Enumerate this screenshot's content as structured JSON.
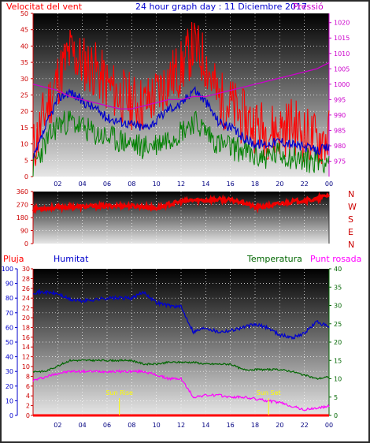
{
  "header": {
    "wind_label": "Velocitat del vent",
    "graph_title": "24 hour graph day : 11 Diciembre 2017",
    "pressure_label": "Pressió"
  },
  "colors": {
    "wind_max": "#ff0000",
    "wind_avg": "#0000cc",
    "wind_min": "#008000",
    "pressure": "#cc00cc",
    "direction": "#ee0000",
    "rain": "#ff0000",
    "humidity": "#0000cc",
    "temperature": "#006600",
    "dewpoint": "#ff00ff",
    "sun_marker": "#ffff00"
  },
  "compass": [
    "N",
    "W",
    "S",
    "E",
    "N"
  ],
  "lower_header": {
    "rain_label": "Pluja",
    "humidity_label": "Humitat",
    "temperature_label": "Temperatura",
    "dewpoint_label": "Punt rosada"
  },
  "sun": {
    "rise_label": "Sun Rise",
    "rise_hour": 7.0,
    "set_label": "Sun Set",
    "set_hour": 19.1
  },
  "chart_data": [
    {
      "type": "line",
      "panel": "wind",
      "x_ticks": [
        "02",
        "04",
        "06",
        "08",
        "10",
        "12",
        "14",
        "16",
        "18",
        "20",
        "22",
        "00"
      ],
      "x_hours": [
        0,
        1,
        2,
        3,
        4,
        5,
        6,
        7,
        8,
        9,
        10,
        11,
        12,
        13,
        14,
        15,
        16,
        17,
        18,
        19,
        20,
        21,
        22,
        23,
        24
      ],
      "ylim": [
        0,
        50
      ],
      "y_ticks": [
        0,
        5,
        10,
        15,
        20,
        25,
        30,
        35,
        40,
        45,
        50
      ],
      "y2lim": [
        970,
        1023
      ],
      "y2_ticks": [
        975,
        980,
        985,
        990,
        995,
        1000,
        1005,
        1010,
        1015,
        1020
      ],
      "series": [
        {
          "name": "Velocitat del vent",
          "axis": "left",
          "values": [
            8,
            20,
            30,
            38,
            35,
            33,
            28,
            25,
            23,
            22,
            25,
            30,
            33,
            40,
            35,
            24,
            22,
            18,
            16,
            14,
            14,
            16,
            13,
            11,
            12
          ]
        },
        {
          "axis": "left",
          "values": [
            5,
            15,
            24,
            26,
            23,
            21,
            18,
            17,
            16,
            15,
            17,
            21,
            22,
            27,
            23,
            17,
            15,
            12,
            10,
            10,
            11,
            10,
            9,
            8,
            9
          ]
        },
        {
          "axis": "left",
          "values": [
            3,
            10,
            16,
            17,
            15,
            13,
            12,
            11,
            10,
            9,
            10,
            12,
            14,
            17,
            14,
            10,
            9,
            8,
            6,
            6,
            7,
            6,
            5,
            5,
            5
          ]
        },
        {
          "name": "Pressió",
          "axis": "right",
          "values": [
            1000,
            999,
            998,
            996,
            995,
            994,
            993,
            992,
            992,
            993,
            994,
            995,
            995,
            996,
            996,
            997,
            998,
            999,
            1000,
            1001,
            1002,
            1003,
            1004,
            1005,
            1007
          ]
        }
      ]
    },
    {
      "type": "line",
      "panel": "wind_direction",
      "x_hours": [
        0,
        1,
        2,
        3,
        4,
        5,
        6,
        7,
        8,
        9,
        10,
        11,
        12,
        13,
        14,
        15,
        16,
        17,
        18,
        19,
        20,
        21,
        22,
        23,
        24
      ],
      "ylim": [
        0,
        360
      ],
      "y_ticks": [
        0,
        90,
        180,
        270,
        360
      ],
      "series": [
        {
          "values": [
            240,
            245,
            250,
            255,
            255,
            258,
            260,
            262,
            260,
            255,
            245,
            270,
            290,
            300,
            300,
            305,
            300,
            290,
            250,
            260,
            275,
            290,
            300,
            305,
            340
          ]
        }
      ]
    },
    {
      "type": "line",
      "panel": "humidity_temperature",
      "x_ticks": [
        "02",
        "04",
        "06",
        "08",
        "10",
        "12",
        "14",
        "16",
        "18",
        "20",
        "22",
        "00"
      ],
      "x_hours": [
        0,
        1,
        2,
        3,
        4,
        5,
        6,
        7,
        8,
        9,
        10,
        11,
        12,
        13,
        14,
        15,
        16,
        17,
        18,
        19,
        20,
        21,
        22,
        23,
        24
      ],
      "ylim": [
        0,
        100
      ],
      "y_ticks": [
        0,
        10,
        20,
        30,
        40,
        50,
        60,
        70,
        80,
        90,
        100
      ],
      "rain_ylim": [
        0,
        30
      ],
      "rain_ticks": [
        0,
        2,
        4,
        6,
        8,
        10,
        12,
        14,
        16,
        18,
        20,
        22,
        24,
        26,
        28,
        30
      ],
      "temp_ylim": [
        0,
        40
      ],
      "temp_ticks": [
        0,
        5,
        10,
        15,
        20,
        25,
        30,
        35,
        40
      ],
      "series": [
        {
          "name": "Pluja",
          "axis": "rain",
          "values": [
            0,
            0,
            0,
            0,
            0,
            0,
            0,
            0,
            0,
            0,
            0,
            0,
            0,
            0,
            0,
            0,
            0,
            0,
            0,
            0,
            0,
            0,
            0,
            0,
            0
          ]
        },
        {
          "name": "Humitat",
          "axis": "left",
          "values": [
            84,
            84,
            83,
            79,
            78,
            79,
            80,
            80,
            80,
            84,
            77,
            75,
            74,
            57,
            60,
            57,
            58,
            60,
            62,
            60,
            55,
            53,
            56,
            64,
            60
          ]
        },
        {
          "name": "Temperatura",
          "axis": "temp",
          "values": [
            12,
            12,
            13.5,
            15,
            15,
            15,
            15,
            15,
            15,
            14,
            14,
            14.5,
            14.5,
            14.5,
            14,
            14,
            14,
            12.5,
            12.5,
            12.5,
            12.5,
            12,
            11,
            10,
            10.5
          ]
        },
        {
          "name": "Punt rosada",
          "axis": "temp",
          "values": [
            9.5,
            10.5,
            11.5,
            12,
            12,
            12,
            12,
            12,
            12,
            12,
            11,
            10,
            10,
            5,
            5.5,
            5.5,
            5,
            5,
            4.5,
            4,
            3.5,
            2.5,
            1.5,
            2,
            2.5
          ]
        }
      ]
    }
  ]
}
